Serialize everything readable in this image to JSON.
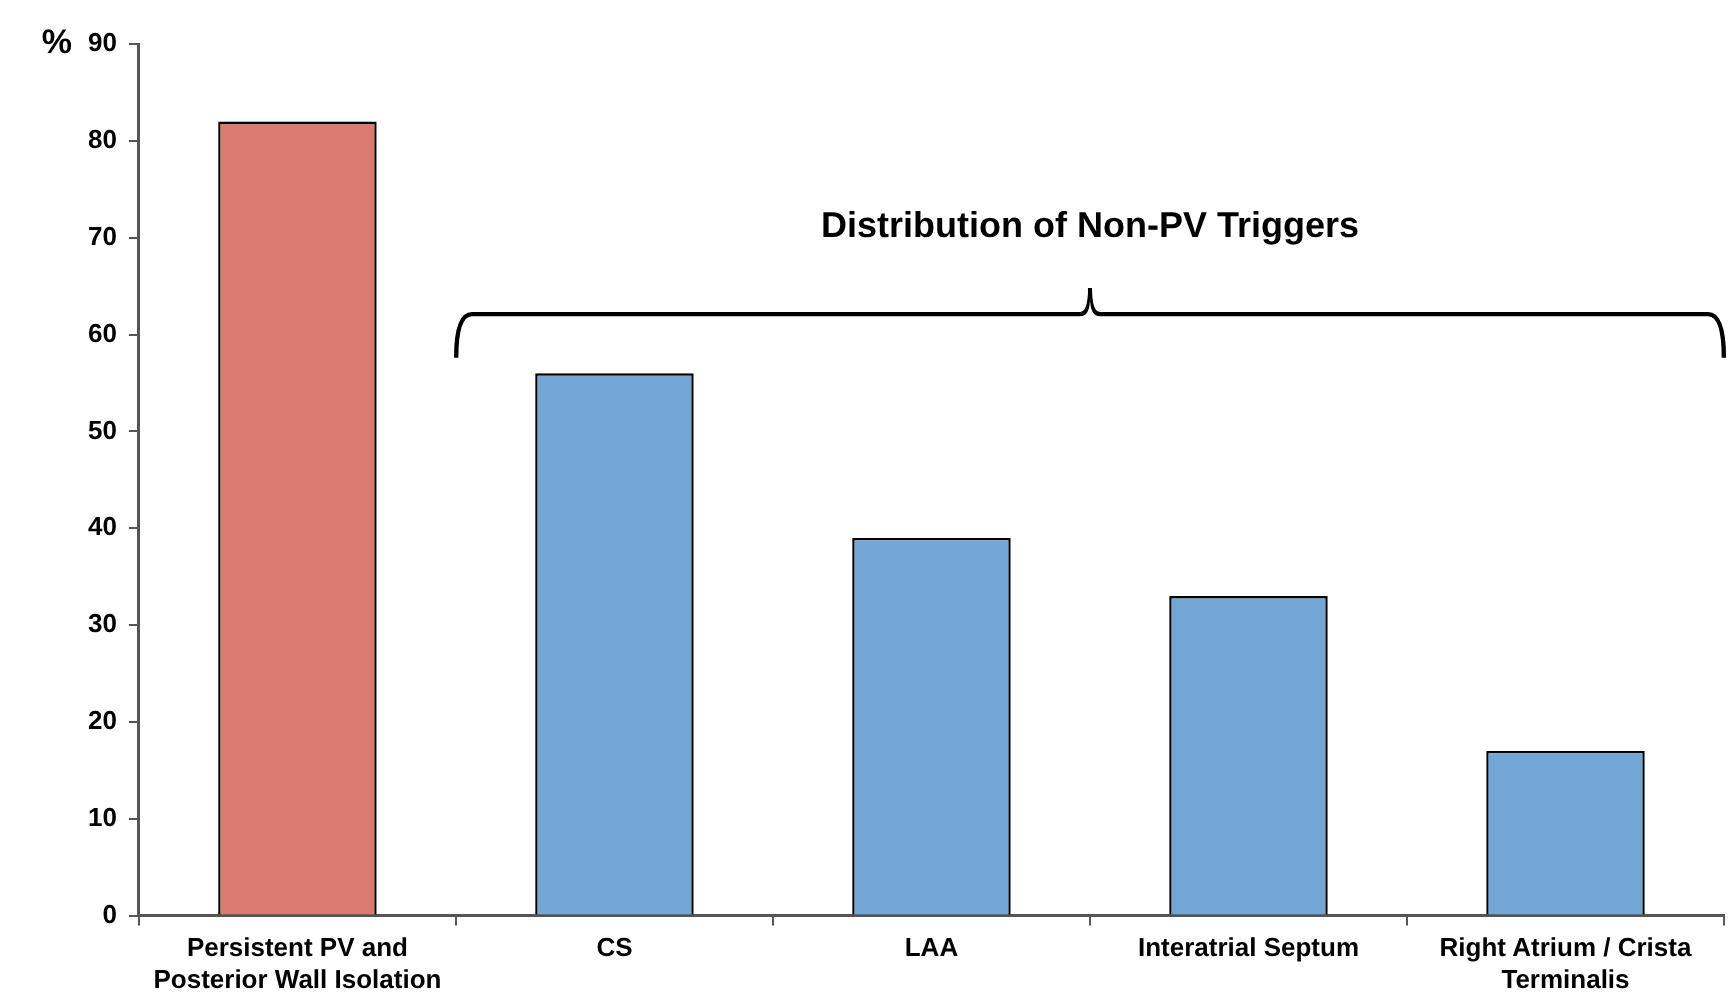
{
  "chart_data": {
    "type": "bar",
    "ylabel": "%",
    "categories": [
      "Persistent PV and Posterior Wall Isolation",
      "CS",
      "LAA",
      "Interatrial Septum",
      "Right Atrium / Crista Terminalis"
    ],
    "values": [
      82,
      56,
      39,
      33,
      17
    ],
    "colors": [
      "#d87b70",
      "#72a7d5",
      "#72a7d5",
      "#72a7d5",
      "#72a7d5"
    ],
    "ylim": [
      0,
      90
    ],
    "yticks": [
      0,
      10,
      20,
      30,
      40,
      50,
      60,
      70,
      80,
      90
    ],
    "grid": false,
    "legend": false,
    "annotations": [
      "Distribution of Non-PV Triggers"
    ]
  }
}
